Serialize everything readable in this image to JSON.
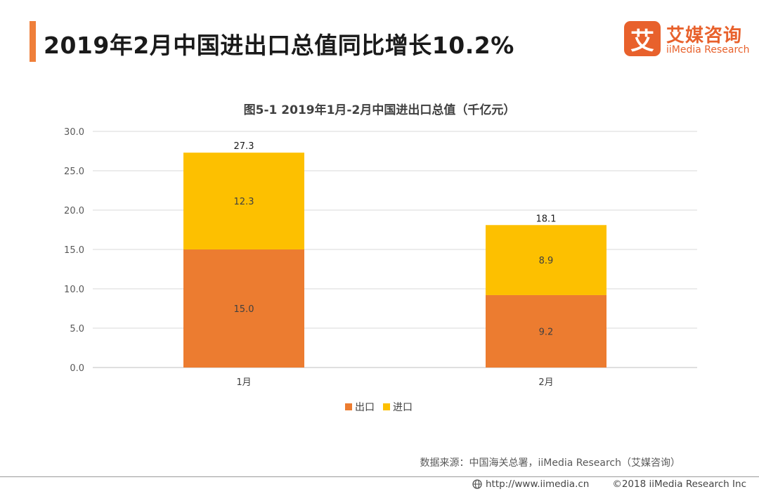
{
  "header": {
    "title": "2019年2月中国进出口总值同比增长10.2%",
    "brand_mark": "艾",
    "brand_cn": "艾媒咨询",
    "brand_en": "iiMedia Research"
  },
  "chart_data": {
    "type": "bar",
    "stacked": true,
    "title": "图5-1 2019年1月-2月中国进出口总值（千亿元）",
    "categories": [
      "1月",
      "2月"
    ],
    "series": [
      {
        "name": "出口",
        "values": [
          15.0,
          9.2
        ],
        "color": "#ec7c30"
      },
      {
        "name": "进口",
        "values": [
          12.3,
          8.9
        ],
        "color": "#fdc000"
      }
    ],
    "totals": [
      27.3,
      18.1
    ],
    "ylim": [
      0,
      30
    ],
    "yticks": [
      "0.0",
      "5.0",
      "10.0",
      "15.0",
      "20.0",
      "25.0",
      "30.0"
    ],
    "grid": true,
    "legend_position": "bottom"
  },
  "source": "数据来源：中国海关总署，iiMedia Research（艾媒咨询）",
  "footer": {
    "url": "http://www.iimedia.cn",
    "copyright": "©2018  iiMedia Research  Inc"
  }
}
